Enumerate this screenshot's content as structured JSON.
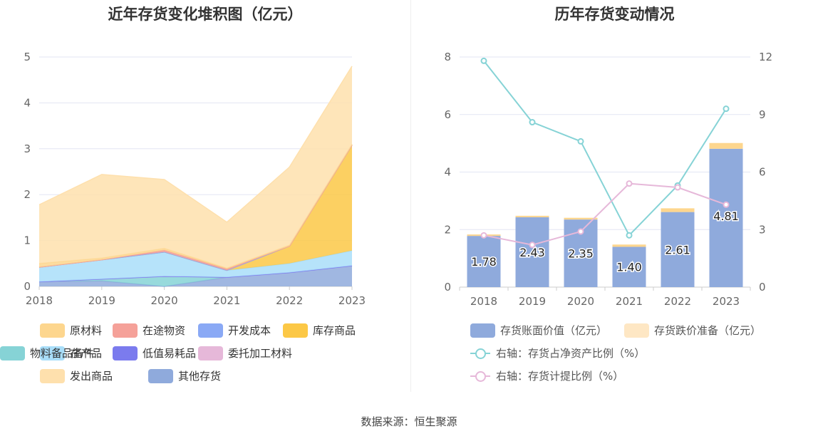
{
  "left_title": "近年存货变化堆积图（亿元）",
  "right_title": "历年存货变动情况",
  "source": "数据来源：恒生聚源",
  "chart_data": [
    {
      "type": "area",
      "stacked": true,
      "title": "近年存货变化堆积图（亿元）",
      "categories": [
        "2018",
        "2019",
        "2020",
        "2021",
        "2022",
        "2023"
      ],
      "ylim": [
        0,
        5
      ],
      "yticks": [
        "0",
        "1",
        "2",
        "3",
        "4",
        "5"
      ],
      "grid": true,
      "legend_position": "bottom",
      "series": [
        {
          "name": "其他存货",
          "color": "#8faadc",
          "values": [
            0.1,
            0.12,
            0.0,
            0.2,
            0.3,
            0.45
          ]
        },
        {
          "name": "物料备品备件",
          "color": "#86d3d6",
          "values": [
            0.0,
            0.04,
            0.22,
            0.0,
            0.0,
            0.0
          ]
        },
        {
          "name": "委托加工材料",
          "color": "#e6b8d9",
          "values": [
            0.0,
            0.0,
            0.0,
            0.0,
            0.0,
            0.0
          ]
        },
        {
          "name": "低值易耗品",
          "color": "#7b7bee",
          "values": [
            0.0,
            0.0,
            0.0,
            0.0,
            0.0,
            0.0
          ]
        },
        {
          "name": "在产品",
          "color": "#a9def9",
          "values": [
            0.32,
            0.42,
            0.53,
            0.15,
            0.2,
            0.33
          ]
        },
        {
          "name": "库存商品",
          "color": "#fcc846",
          "values": [
            0.0,
            0.0,
            0.0,
            0.0,
            0.38,
            2.3
          ]
        },
        {
          "name": "开发成本",
          "color": "#8aa9f5",
          "values": [
            0.0,
            0.0,
            0.0,
            0.0,
            0.0,
            0.0
          ]
        },
        {
          "name": "在途物资",
          "color": "#f5a199",
          "values": [
            0.0,
            0.0,
            0.04,
            0.03,
            0.0,
            0.0
          ]
        },
        {
          "name": "原材料",
          "color": "#fdd68e",
          "values": [
            0.08,
            0.04,
            0.04,
            0.02,
            0.02,
            0.02
          ]
        },
        {
          "name": "发出商品",
          "color": "#fee0ad",
          "values": [
            1.28,
            1.82,
            1.5,
            1.0,
            1.7,
            1.7
          ]
        }
      ],
      "legend_order": [
        "原材料",
        "在途物资",
        "开发成本",
        "库存商品",
        "在产品",
        "低值易耗品",
        "委托加工材料",
        "物料备品备件",
        "发出商品",
        "其他存货"
      ]
    },
    {
      "type": "bar",
      "stacked": true,
      "title": "历年存货变动情况",
      "categories": [
        "2018",
        "2019",
        "2020",
        "2021",
        "2022",
        "2023"
      ],
      "ylim": [
        0,
        8
      ],
      "yticks": [
        "0",
        "2",
        "4",
        "6",
        "8"
      ],
      "y2lim": [
        0,
        12
      ],
      "y2ticks": [
        "0",
        "3",
        "6",
        "9",
        "12"
      ],
      "grid": true,
      "legend_position": "bottom",
      "series": [
        {
          "name": "存货账面价值（亿元）",
          "color": "#8faadc",
          "type": "bar",
          "values": [
            1.78,
            2.43,
            2.35,
            1.4,
            2.61,
            4.81
          ],
          "labels": [
            "1.78",
            "2.43",
            "2.35",
            "1.40",
            "2.61",
            "4.81"
          ]
        },
        {
          "name": "存货跌价准备（亿元）",
          "color": "#fdd68e",
          "type": "bar",
          "values": [
            0.05,
            0.05,
            0.06,
            0.08,
            0.13,
            0.2
          ]
        },
        {
          "name": "右轴：存货占净资产比例（%）",
          "color": "#86d3d6",
          "type": "line",
          "axis": "right",
          "values": [
            11.8,
            8.6,
            7.6,
            2.7,
            5.3,
            9.3
          ]
        },
        {
          "name": "右轴：存货计提比例（%）",
          "color": "#e6b8d9",
          "type": "line",
          "axis": "right",
          "values": [
            2.7,
            2.2,
            2.9,
            5.4,
            5.2,
            4.3
          ]
        }
      ],
      "legend_colors": [
        "#8faadc",
        "#fee7c4",
        "#86d3d6",
        "#e6b8d9"
      ]
    }
  ]
}
